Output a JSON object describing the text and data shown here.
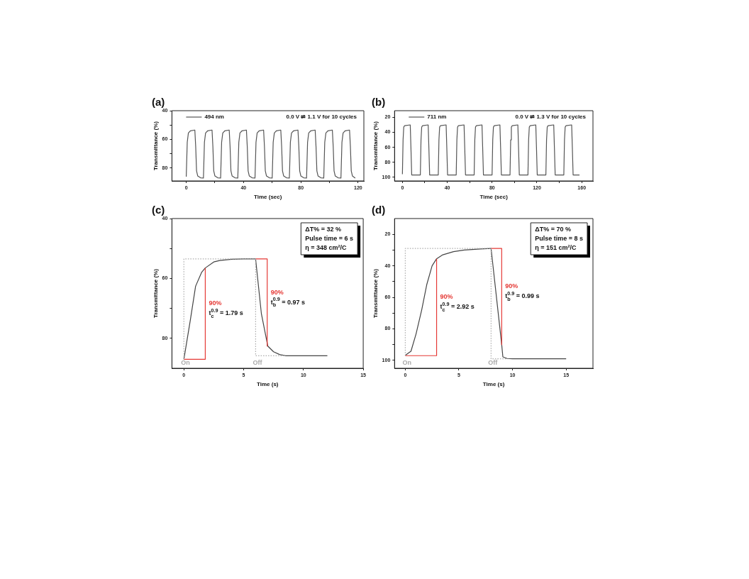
{
  "chart_data": [
    {
      "type": "line",
      "title": "(a)",
      "xlabel": "Time (sec)",
      "ylabel": "Transmittance (%)",
      "legend": "top left",
      "grid": false,
      "xlim": [
        -10,
        124
      ],
      "xticks": [
        0,
        {
          "value": 20,
          "label": null
        },
        40,
        {
          "value": 60,
          "label": null
        },
        80,
        {
          "value": 100,
          "label": null
        },
        120
      ],
      "ylim": [
        89,
        40
      ],
      "yticks": [
        40,
        {
          "value": 50,
          "label": null
        },
        60,
        {
          "value": 70,
          "label": null
        },
        80
      ],
      "annotations": [
        "0.0 V ⇌ 1.1 V for 10 cycles"
      ],
      "series": [
        {
          "name": "494 nm",
          "color": "#555555",
          "x": [
            0,
            0.7,
            1.5,
            3,
            6,
            6.6,
            7.2,
            8,
            10,
            12,
            12.7,
            13.5,
            15,
            18,
            18.6,
            19.2,
            20,
            22,
            24,
            24.7,
            25.5,
            27,
            30,
            30.6,
            31.2,
            32,
            34,
            36,
            36.7,
            37.5,
            39,
            42,
            42.6,
            43.2,
            44,
            46,
            48,
            48.7,
            49.5,
            51,
            54,
            54.6,
            55.2,
            56,
            58,
            60,
            60.7,
            61.5,
            63,
            66,
            66.6,
            67.2,
            68,
            70,
            72,
            72.7,
            73.5,
            75,
            78,
            78.6,
            79.2,
            80,
            82,
            84,
            84.7,
            85.5,
            87,
            90,
            90.6,
            91.2,
            92,
            94,
            96,
            96.7,
            97.5,
            99,
            102,
            102.6,
            103.2,
            104,
            106,
            108,
            108.7,
            109.5,
            111,
            114,
            114.6,
            115.2,
            116,
            118
          ],
          "values": [
            86,
            62,
            55.5,
            54,
            53.5,
            65,
            82,
            85.5,
            86.8,
            87,
            62,
            55.5,
            54,
            53.5,
            65,
            82,
            85.5,
            86.8,
            87,
            62,
            55.5,
            54,
            53.5,
            65,
            82,
            85.5,
            86.8,
            87,
            62,
            55.5,
            54,
            53.5,
            65,
            82,
            85.5,
            86.8,
            87,
            62,
            55.5,
            54,
            53.5,
            65,
            82,
            85.5,
            86.8,
            87,
            62,
            55.5,
            54,
            53.5,
            65,
            82,
            85.5,
            86.8,
            87,
            62,
            55.5,
            54,
            53.5,
            65,
            82,
            85.5,
            86.8,
            87,
            62,
            55.5,
            54,
            53.5,
            65,
            82,
            85.5,
            86.8,
            87,
            62,
            55.5,
            54,
            53.5,
            65,
            82,
            85.5,
            86.8,
            87,
            62,
            55.5,
            54,
            53.5,
            65,
            82,
            85.5,
            87
          ]
        }
      ]
    },
    {
      "type": "line",
      "title": "(b)",
      "xlabel": "Time (sec)",
      "ylabel": "Transmittance (%)",
      "legend": "top left",
      "grid": false,
      "xlim": [
        -7,
        170
      ],
      "xticks": [
        0,
        {
          "value": 20,
          "label": null
        },
        40,
        {
          "value": 60,
          "label": null
        },
        80,
        {
          "value": 100,
          "label": null
        },
        120,
        {
          "value": 140,
          "label": null
        },
        160
      ],
      "ylim": [
        105,
        11
      ],
      "yticks": [
        20,
        40,
        60,
        80,
        100
      ],
      "annotations": [
        "0.0 V ⇌ 1.3 V for 10 cycles"
      ],
      "series": [
        {
          "name": "711 nm",
          "color": "#555555",
          "x": [
            0,
            0.6,
            1.2,
            2,
            7,
            7.6,
            8.3,
            16,
            16.6,
            17.2,
            18,
            23,
            23.6,
            24.3,
            32,
            32.6,
            33.2,
            34,
            39,
            39.6,
            40.3,
            48,
            48.6,
            49.2,
            50,
            55,
            55.6,
            56.3,
            64,
            64.6,
            65.2,
            66,
            71,
            71.6,
            72.3,
            80,
            80.6,
            81.2,
            82,
            87,
            87.6,
            88.3,
            96,
            96.6,
            97.2,
            98,
            103,
            103.6,
            104.3,
            112,
            112.6,
            113.2,
            114,
            119,
            119.6,
            120.3,
            128,
            128.6,
            129.2,
            130,
            135,
            135.6,
            136.3,
            144,
            144.6,
            145.2,
            146,
            151,
            151.6,
            152.3,
            158
          ],
          "values": [
            96,
            50,
            33,
            31,
            30,
            60,
            97,
            97,
            50,
            33,
            31,
            30,
            60,
            97,
            97,
            50,
            33,
            31,
            30,
            60,
            97,
            97,
            50,
            33,
            31,
            30,
            60,
            97,
            97,
            50,
            33,
            31,
            30,
            60,
            97,
            97,
            50,
            33,
            31,
            30,
            60,
            97,
            97,
            50,
            33,
            31,
            30,
            60,
            97,
            97,
            50,
            33,
            31,
            30,
            60,
            97,
            97,
            50,
            33,
            31,
            30,
            60,
            97,
            97,
            50,
            33,
            31,
            30,
            60,
            97,
            97
          ]
        }
      ]
    },
    {
      "type": "line",
      "title": "(c)",
      "xlabel": "Time (s)",
      "ylabel": "Transmittance (%)",
      "grid": false,
      "xlim": [
        -1,
        15
      ],
      "xticks": [
        0,
        5,
        10,
        15
      ],
      "ylim": [
        90,
        40
      ],
      "yticks": [
        40,
        {
          "value": 50,
          "label": null
        },
        60,
        {
          "value": 70,
          "label": null
        },
        80
      ],
      "annotations": [
        "ΔT% = 32 %",
        "Pulse time = 6 s",
        "η = 348 cm²/C",
        "90%",
        "t$_{c}$$^{0.9}$ = 1.79 s",
        "90%",
        "t$_{b}$$^{0.9}$ = 0.97 s",
        "On",
        "Off"
      ],
      "series": [
        {
          "color": "#aaaaaa",
          "line_style": "dotted",
          "x": [
            0,
            0,
            6
          ],
          "values": [
            87,
            53.5,
            53.5
          ]
        },
        {
          "color": "#aaaaaa",
          "line_style": "dotted",
          "x": [
            6,
            6,
            8.5
          ],
          "values": [
            53.5,
            85.8,
            85.8
          ]
        },
        {
          "color": "#e53935",
          "x": [
            0,
            1.79,
            1.79
          ],
          "values": [
            87,
            87,
            56.5
          ]
        },
        {
          "color": "#e53935",
          "x": [
            6,
            6.97,
            6.97
          ],
          "values": [
            53.5,
            53.5,
            82.6
          ]
        },
        {
          "color": "#444444",
          "x": [
            0,
            0.54,
            0.98,
            1.48,
            1.79,
            2.5,
            3,
            4,
            5,
            6,
            6.48,
            7.02,
            7.5,
            8,
            8.5,
            12
          ],
          "values": [
            87,
            73.9,
            62.6,
            58,
            56.5,
            54.5,
            54,
            53.6,
            53.5,
            53.5,
            71.7,
            82.6,
            84.5,
            85.4,
            85.8,
            85.8
          ]
        }
      ]
    },
    {
      "type": "line",
      "title": "(d)",
      "xlabel": "Time (s)",
      "ylabel": "Transmittance (%)",
      "grid": false,
      "xlim": [
        -1,
        17.5
      ],
      "xticks": [
        0,
        5,
        10,
        15
      ],
      "ylim": [
        105,
        10
      ],
      "yticks": [
        20,
        {
          "value": 30,
          "label": null
        },
        40,
        {
          "value": 50,
          "label": null
        },
        60,
        {
          "value": 70,
          "label": null
        },
        80,
        {
          "value": 90,
          "label": null
        },
        100
      ],
      "annotations": [
        "ΔT% = 70 %",
        "Pulse time = 8 s",
        "η = 151 cm²/C",
        "90%",
        "t$_{c}$$^{0.9}$ = 2.92 s",
        "90%",
        "t$_{b}$$^{0.9}$ = 0.99 s",
        "On",
        "Off"
      ],
      "series": [
        {
          "color": "#aaaaaa",
          "line_style": "dotted",
          "x": [
            0,
            0,
            8
          ],
          "values": [
            97,
            29,
            29
          ]
        },
        {
          "color": "#aaaaaa",
          "line_style": "dotted",
          "x": [
            8,
            8,
            9.5
          ],
          "values": [
            29,
            99,
            99
          ]
        },
        {
          "color": "#e53935",
          "x": [
            0,
            2.92,
            2.92
          ],
          "values": [
            97,
            97,
            35.5
          ]
        },
        {
          "color": "#e53935",
          "x": [
            8,
            8.99,
            8.99
          ],
          "values": [
            29,
            29,
            90
          ]
        },
        {
          "color": "#444444",
          "x": [
            0,
            0.53,
            1,
            1.53,
            2,
            2.5,
            2.92,
            3.5,
            4.5,
            5.5,
            7,
            8,
            8.99,
            9.1,
            9.5,
            10,
            15
          ],
          "values": [
            96.8,
            94.2,
            83.3,
            68,
            52,
            40,
            35.5,
            33,
            31,
            30,
            29.3,
            29,
            90,
            97.8,
            98.8,
            99,
            99
          ]
        }
      ]
    }
  ]
}
